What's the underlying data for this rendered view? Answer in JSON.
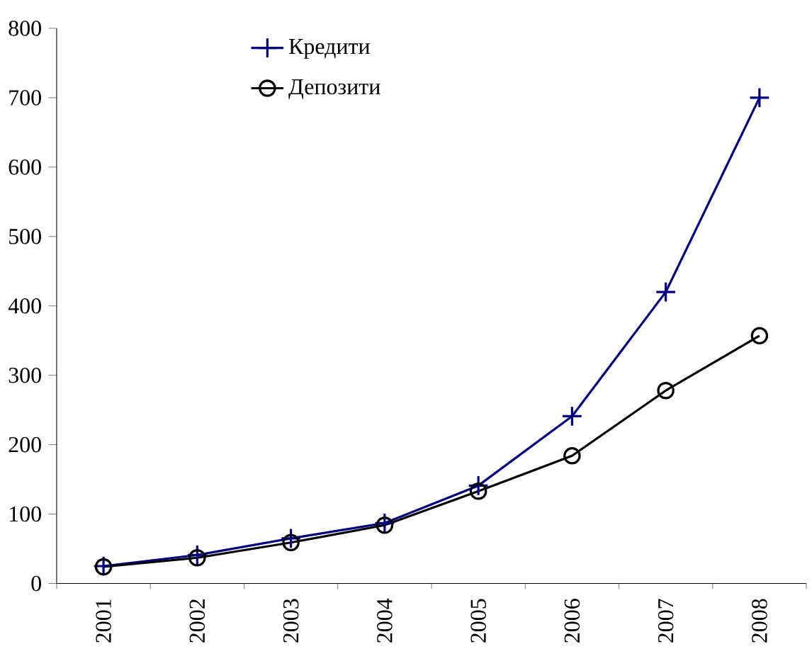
{
  "chart_data": {
    "type": "line",
    "categories": [
      "2001",
      "2002",
      "2003",
      "2004",
      "2005",
      "2006",
      "2007",
      "2008"
    ],
    "series": [
      {
        "name": "Кредити",
        "color": "#000080",
        "marker": "cross",
        "values": [
          25,
          41,
          65,
          87,
          141,
          241,
          420,
          700
        ]
      },
      {
        "name": "Депозити",
        "color": "#000000",
        "marker": "circle",
        "values": [
          24,
          37,
          59,
          84,
          133,
          184,
          278,
          357
        ]
      }
    ],
    "ylim": [
      0,
      800
    ],
    "yticks": [
      0,
      100,
      200,
      300,
      400,
      500,
      600,
      700,
      800
    ],
    "legend": "top left",
    "grid": false,
    "line_style": "solid"
  }
}
